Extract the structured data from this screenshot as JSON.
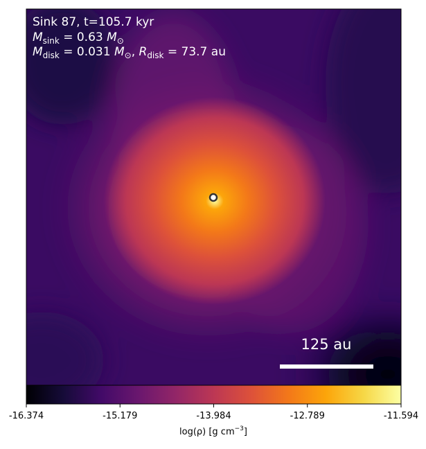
{
  "chart_data": {
    "type": "density-map",
    "annotations": {
      "title": "Sink 87, t=105.7 kyr",
      "sink_mass": {
        "symbol": "M",
        "sub": "sink",
        "value": " = 0.63 ",
        "unit": "M",
        "unit_sub": "⊙"
      },
      "disk": {
        "symbol": "M",
        "sub": "disk",
        "value": " = 0.031 ",
        "unit": "M",
        "unit_sub": "⊙",
        "sep": ", ",
        "symbol2": "R",
        "sub2": "disk",
        "value2": " = 73.7 au"
      }
    },
    "scale_bar": "125 au",
    "colormap": "inferno",
    "colorbar": {
      "label": {
        "text": "log(ρ) [g cm",
        "sup": "−3",
        "end": "]"
      },
      "lim": [
        -16.374,
        -11.594
      ],
      "ticks": [
        -16.374,
        -15.179,
        -13.984,
        -12.789,
        -11.594
      ]
    }
  }
}
